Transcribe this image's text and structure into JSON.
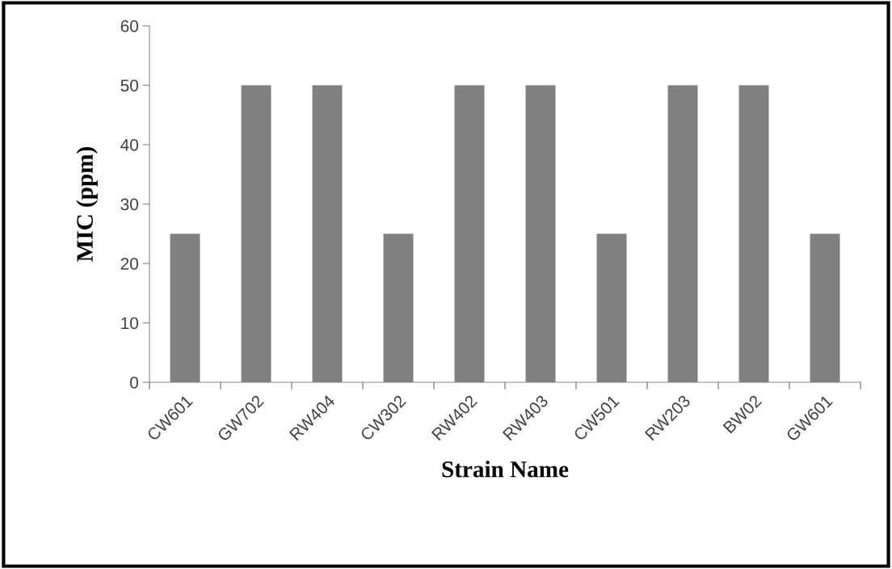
{
  "chart_data": {
    "type": "bar",
    "xlabel": "Strain Name",
    "ylabel": "MIC (ppm)",
    "categories": [
      "CW601",
      "GW702",
      "RW404",
      "CW302",
      "RW402",
      "RW403",
      "CW501",
      "RW203",
      "BW02",
      "GW601"
    ],
    "values": [
      25,
      50,
      50,
      25,
      50,
      50,
      25,
      50,
      50,
      25
    ],
    "color": "#808080",
    "ylim": [
      0,
      60
    ],
    "yticks": [
      0,
      10,
      20,
      30,
      40,
      50,
      60
    ],
    "grid": false,
    "legend": false
  }
}
